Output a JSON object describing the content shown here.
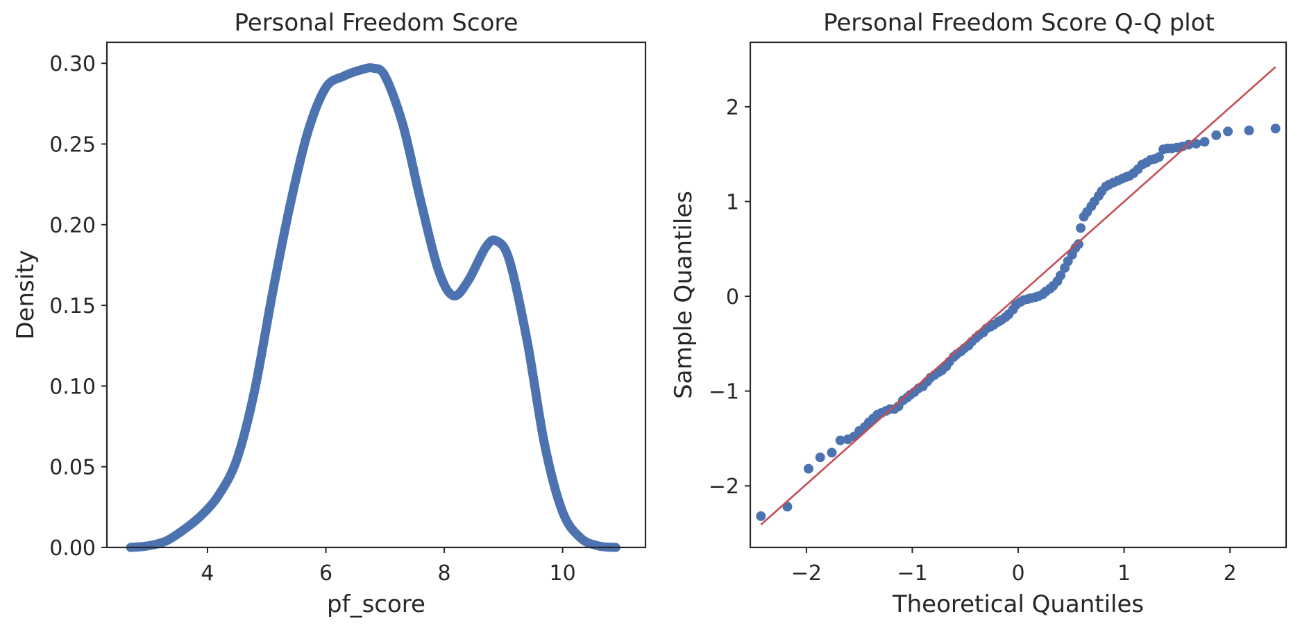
{
  "chart_data": [
    {
      "type": "line",
      "title": "Personal Freedom Score",
      "xlabel": "pf_score",
      "ylabel": "Density",
      "xlim": [
        2.3,
        11.4
      ],
      "ylim": [
        0,
        0.313
      ],
      "x_ticks": [
        4,
        6,
        8,
        10
      ],
      "y_ticks": [
        0.0,
        0.05,
        0.1,
        0.15,
        0.2,
        0.25,
        0.3
      ],
      "x_tick_labels": [
        "4",
        "6",
        "8",
        "10"
      ],
      "y_tick_labels": [
        "0.00",
        "0.05",
        "0.10",
        "0.15",
        "0.20",
        "0.25",
        "0.30"
      ],
      "grid": false,
      "color": "#4c72b0",
      "series": [
        {
          "x": [
            2.7,
            3.0,
            3.3,
            3.6,
            3.9,
            4.2,
            4.5,
            4.8,
            5.1,
            5.4,
            5.7,
            6.0,
            6.3,
            6.6,
            6.8,
            7.0,
            7.3,
            7.6,
            7.9,
            8.15,
            8.4,
            8.7,
            8.88,
            9.1,
            9.4,
            9.7,
            10.0,
            10.3,
            10.6,
            10.9
          ],
          "y": [
            0.0,
            0.001,
            0.004,
            0.011,
            0.02,
            0.033,
            0.055,
            0.098,
            0.158,
            0.213,
            0.258,
            0.285,
            0.292,
            0.296,
            0.297,
            0.292,
            0.262,
            0.215,
            0.172,
            0.156,
            0.165,
            0.186,
            0.19,
            0.178,
            0.128,
            0.063,
            0.022,
            0.006,
            0.001,
            0.0
          ]
        }
      ]
    },
    {
      "type": "scatter",
      "title": "Personal Freedom Score Q-Q plot",
      "xlabel": "Theoretical Quantiles",
      "ylabel": "Sample Quantiles",
      "xlim": [
        -2.53,
        2.53
      ],
      "ylim": [
        -2.65,
        2.68
      ],
      "x_ticks": [
        -2,
        -1,
        0,
        1,
        2
      ],
      "y_ticks": [
        -2,
        -1,
        0,
        1,
        2
      ],
      "x_tick_labels": [
        "−2",
        "−1",
        "0",
        "1",
        "2"
      ],
      "y_tick_labels": [
        "−2",
        "−1",
        "0",
        "1",
        "2"
      ],
      "grid": false,
      "point_color": "#4c72b0",
      "line_color": "#c44e52",
      "reference_line": {
        "x": [
          -2.43,
          2.43
        ],
        "y": [
          -2.41,
          2.42
        ]
      },
      "points": [
        [
          -2.43,
          -2.32
        ],
        [
          -2.18,
          -2.22
        ],
        [
          -1.98,
          -1.82
        ],
        [
          -1.87,
          -1.7
        ],
        [
          -1.76,
          -1.65
        ],
        [
          -1.68,
          -1.52
        ],
        [
          -1.61,
          -1.51
        ],
        [
          -1.55,
          -1.48
        ],
        [
          -1.5,
          -1.42
        ],
        [
          -1.45,
          -1.38
        ],
        [
          -1.41,
          -1.33
        ],
        [
          -1.37,
          -1.29
        ],
        [
          -1.33,
          -1.25
        ],
        [
          -1.29,
          -1.23
        ],
        [
          -1.25,
          -1.21
        ],
        [
          -1.21,
          -1.19
        ],
        [
          -1.17,
          -1.19
        ],
        [
          -1.13,
          -1.16
        ],
        [
          -1.09,
          -1.1
        ],
        [
          -1.05,
          -1.07
        ],
        [
          -1.02,
          -1.04
        ],
        [
          -0.98,
          -1.01
        ],
        [
          -0.94,
          -0.97
        ],
        [
          -0.9,
          -0.95
        ],
        [
          -0.86,
          -0.9
        ],
        [
          -0.83,
          -0.86
        ],
        [
          -0.79,
          -0.83
        ],
        [
          -0.75,
          -0.8
        ],
        [
          -0.72,
          -0.78
        ],
        [
          -0.68,
          -0.74
        ],
        [
          -0.65,
          -0.69
        ],
        [
          -0.61,
          -0.64
        ],
        [
          -0.58,
          -0.61
        ],
        [
          -0.54,
          -0.58
        ],
        [
          -0.51,
          -0.55
        ],
        [
          -0.47,
          -0.52
        ],
        [
          -0.44,
          -0.48
        ],
        [
          -0.4,
          -0.44
        ],
        [
          -0.37,
          -0.41
        ],
        [
          -0.33,
          -0.38
        ],
        [
          -0.3,
          -0.34
        ],
        [
          -0.26,
          -0.32
        ],
        [
          -0.23,
          -0.3
        ],
        [
          -0.19,
          -0.27
        ],
        [
          -0.16,
          -0.25
        ],
        [
          -0.12,
          -0.22
        ],
        [
          -0.09,
          -0.19
        ],
        [
          -0.05,
          -0.14
        ],
        [
          -0.02,
          -0.09
        ],
        [
          0.02,
          -0.06
        ],
        [
          0.05,
          -0.04
        ],
        [
          0.09,
          -0.03
        ],
        [
          0.12,
          -0.02
        ],
        [
          0.16,
          -0.01
        ],
        [
          0.19,
          0.0
        ],
        [
          0.23,
          0.02
        ],
        [
          0.26,
          0.05
        ],
        [
          0.3,
          0.08
        ],
        [
          0.33,
          0.11
        ],
        [
          0.37,
          0.16
        ],
        [
          0.4,
          0.22
        ],
        [
          0.44,
          0.3
        ],
        [
          0.47,
          0.37
        ],
        [
          0.51,
          0.44
        ],
        [
          0.54,
          0.51
        ],
        [
          0.57,
          0.55
        ],
        [
          0.59,
          0.72
        ],
        [
          0.62,
          0.84
        ],
        [
          0.65,
          0.89
        ],
        [
          0.69,
          0.95
        ],
        [
          0.72,
          1.0
        ],
        [
          0.76,
          1.06
        ],
        [
          0.79,
          1.11
        ],
        [
          0.83,
          1.16
        ],
        [
          0.86,
          1.18
        ],
        [
          0.9,
          1.2
        ],
        [
          0.94,
          1.22
        ],
        [
          0.98,
          1.24
        ],
        [
          1.02,
          1.26
        ],
        [
          1.05,
          1.27
        ],
        [
          1.09,
          1.3
        ],
        [
          1.13,
          1.34
        ],
        [
          1.17,
          1.39
        ],
        [
          1.21,
          1.41
        ],
        [
          1.25,
          1.44
        ],
        [
          1.29,
          1.45
        ],
        [
          1.33,
          1.47
        ],
        [
          1.37,
          1.55
        ],
        [
          1.41,
          1.56
        ],
        [
          1.45,
          1.56
        ],
        [
          1.5,
          1.57
        ],
        [
          1.55,
          1.58
        ],
        [
          1.61,
          1.6
        ],
        [
          1.68,
          1.61
        ],
        [
          1.76,
          1.63
        ],
        [
          1.87,
          1.7
        ],
        [
          1.98,
          1.74
        ],
        [
          2.18,
          1.75
        ],
        [
          2.43,
          1.77
        ]
      ]
    }
  ]
}
